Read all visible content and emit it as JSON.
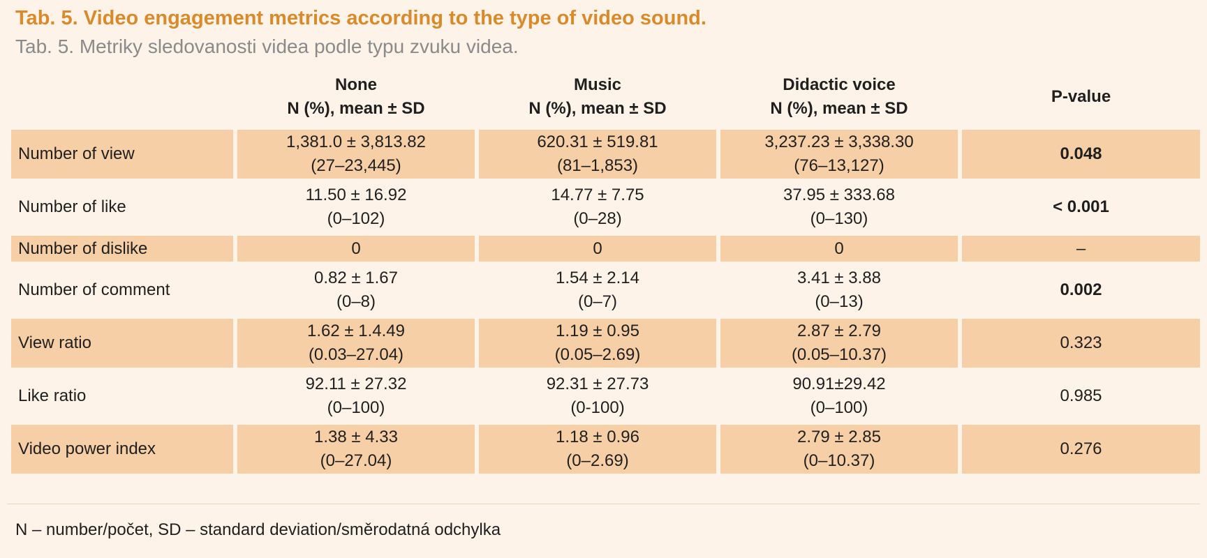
{
  "title": "Tab. 5. Video engagement metrics according to the type of video sound.",
  "subtitle": "Tab. 5. Metriky sledovanosti videa podle typu zvuku videa.",
  "columns": [
    {
      "name": "None",
      "sub": "N (%), mean ± SD"
    },
    {
      "name": "Music",
      "sub": "N (%), mean ± SD"
    },
    {
      "name": "Didactic voice",
      "sub": "N (%), mean ± SD"
    },
    {
      "name": "P-value",
      "sub": ""
    }
  ],
  "rows": [
    {
      "label": "Number of view",
      "none": [
        "1,381.0 ± 3,813.82",
        "(27–23,445)"
      ],
      "music": [
        "620.31 ± 519.81",
        "(81–1,853)"
      ],
      "voice": [
        "3,237.23 ± 3,338.30",
        "(76–13,127)"
      ],
      "p": "0.048",
      "p_bold": true
    },
    {
      "label": "Number of like",
      "none": [
        "11.50 ± 16.92",
        "(0–102)"
      ],
      "music": [
        "14.77 ± 7.75",
        "(0–28)"
      ],
      "voice": [
        "37.95 ± 333.68",
        "(0–130)"
      ],
      "p": "< 0.001",
      "p_bold": true
    },
    {
      "label": "Number of dislike",
      "none": [
        "0",
        ""
      ],
      "music": [
        "0",
        ""
      ],
      "voice": [
        "0",
        ""
      ],
      "p": "–",
      "p_bold": false
    },
    {
      "label": "Number of comment",
      "none": [
        "0.82 ± 1.67",
        "(0–8)"
      ],
      "music": [
        "1.54 ± 2.14",
        "(0–7)"
      ],
      "voice": [
        "3.41 ± 3.88",
        "(0–13)"
      ],
      "p": "0.002",
      "p_bold": true
    },
    {
      "label": "View ratio",
      "none": [
        "1.62 ± 1.4.49",
        "(0.03–27.04)"
      ],
      "music": [
        "1.19 ± 0.95",
        "(0.05–2.69)"
      ],
      "voice": [
        "2.87 ± 2.79",
        "(0.05–10.37)"
      ],
      "p": "0.323",
      "p_bold": false
    },
    {
      "label": "Like ratio",
      "none": [
        "92.11 ± 27.32",
        "(0–100)"
      ],
      "music": [
        "92.31 ± 27.73",
        "(0-100)"
      ],
      "voice": [
        "90.91±29.42",
        "(0–100)"
      ],
      "p": "0.985",
      "p_bold": false
    },
    {
      "label": "Video power index",
      "none": [
        "1.38 ± 4.33",
        "(0–27.04)"
      ],
      "music": [
        "1.18 ± 0.96",
        "(0–2.69)"
      ],
      "voice": [
        "2.79 ± 2.85",
        "(0–10.37)"
      ],
      "p": "0.276",
      "p_bold": false
    }
  ],
  "footnote": "N – number/počet, SD – standard deviation/směrodatná odchylka",
  "colors": {
    "title": "#d98a2b",
    "band": "#f6cfa6",
    "background": "#fdf3e8"
  }
}
